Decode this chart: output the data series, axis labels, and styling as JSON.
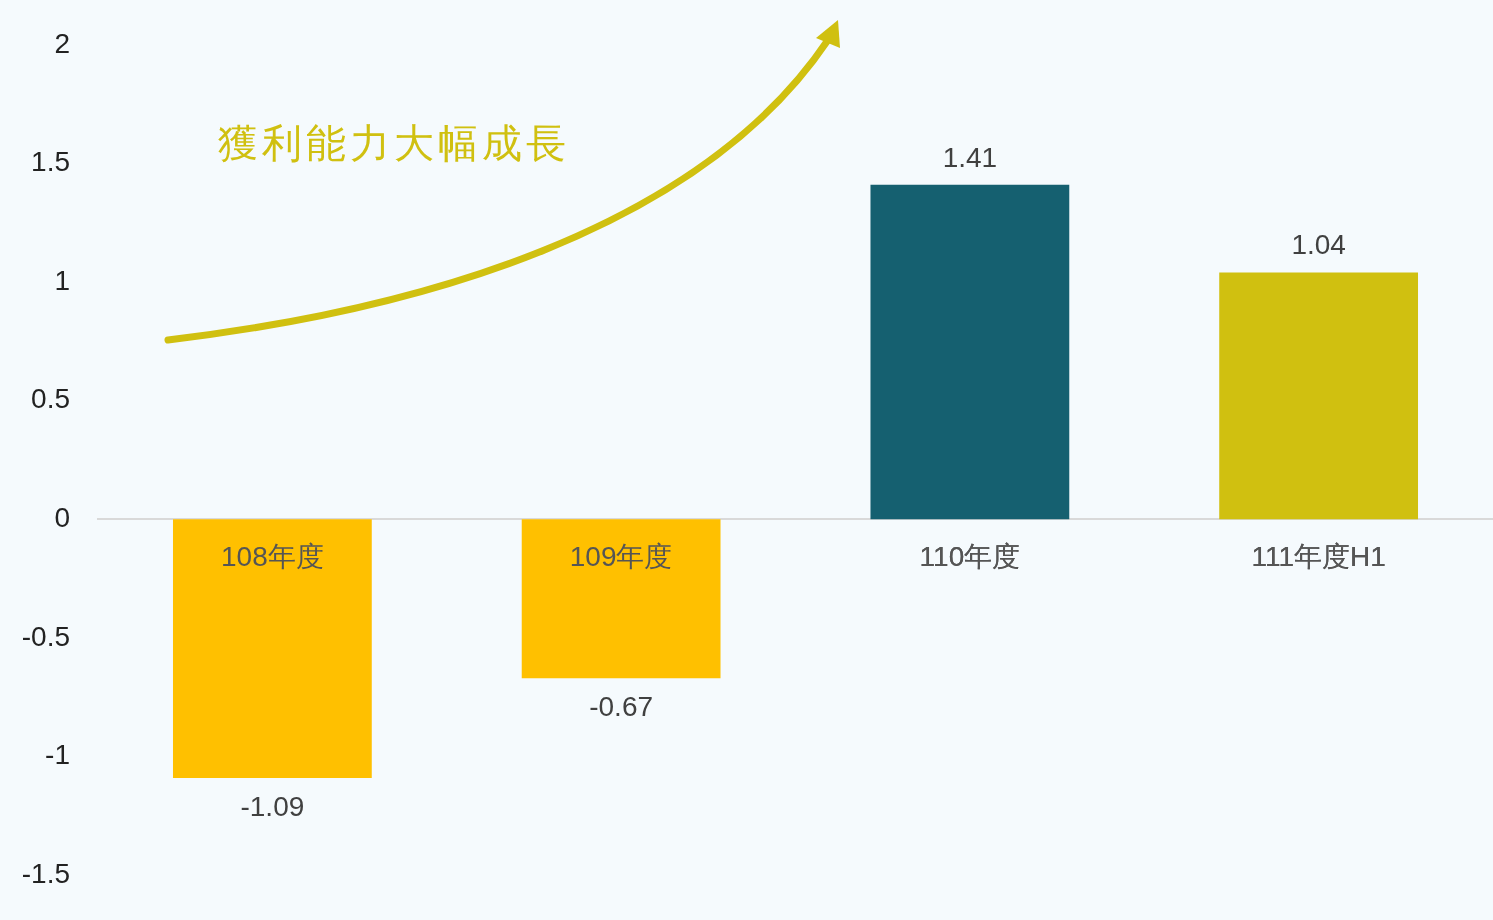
{
  "chart_data": {
    "type": "bar",
    "categories": [
      "108年度",
      "109年度",
      "110年度",
      "111年度H1"
    ],
    "values": [
      -1.09,
      -0.67,
      1.41,
      1.04
    ],
    "colors": [
      "#ffc000",
      "#ffc000",
      "#156070",
      "#d0c010"
    ],
    "ylim": [
      -1.5,
      2
    ],
    "yticks": [
      -1.5,
      -1,
      -0.5,
      0,
      0.5,
      1,
      1.5,
      2
    ],
    "grid": false,
    "legend": false,
    "data_labels": true,
    "annotations": [
      "獲利能力大幅成長"
    ]
  }
}
